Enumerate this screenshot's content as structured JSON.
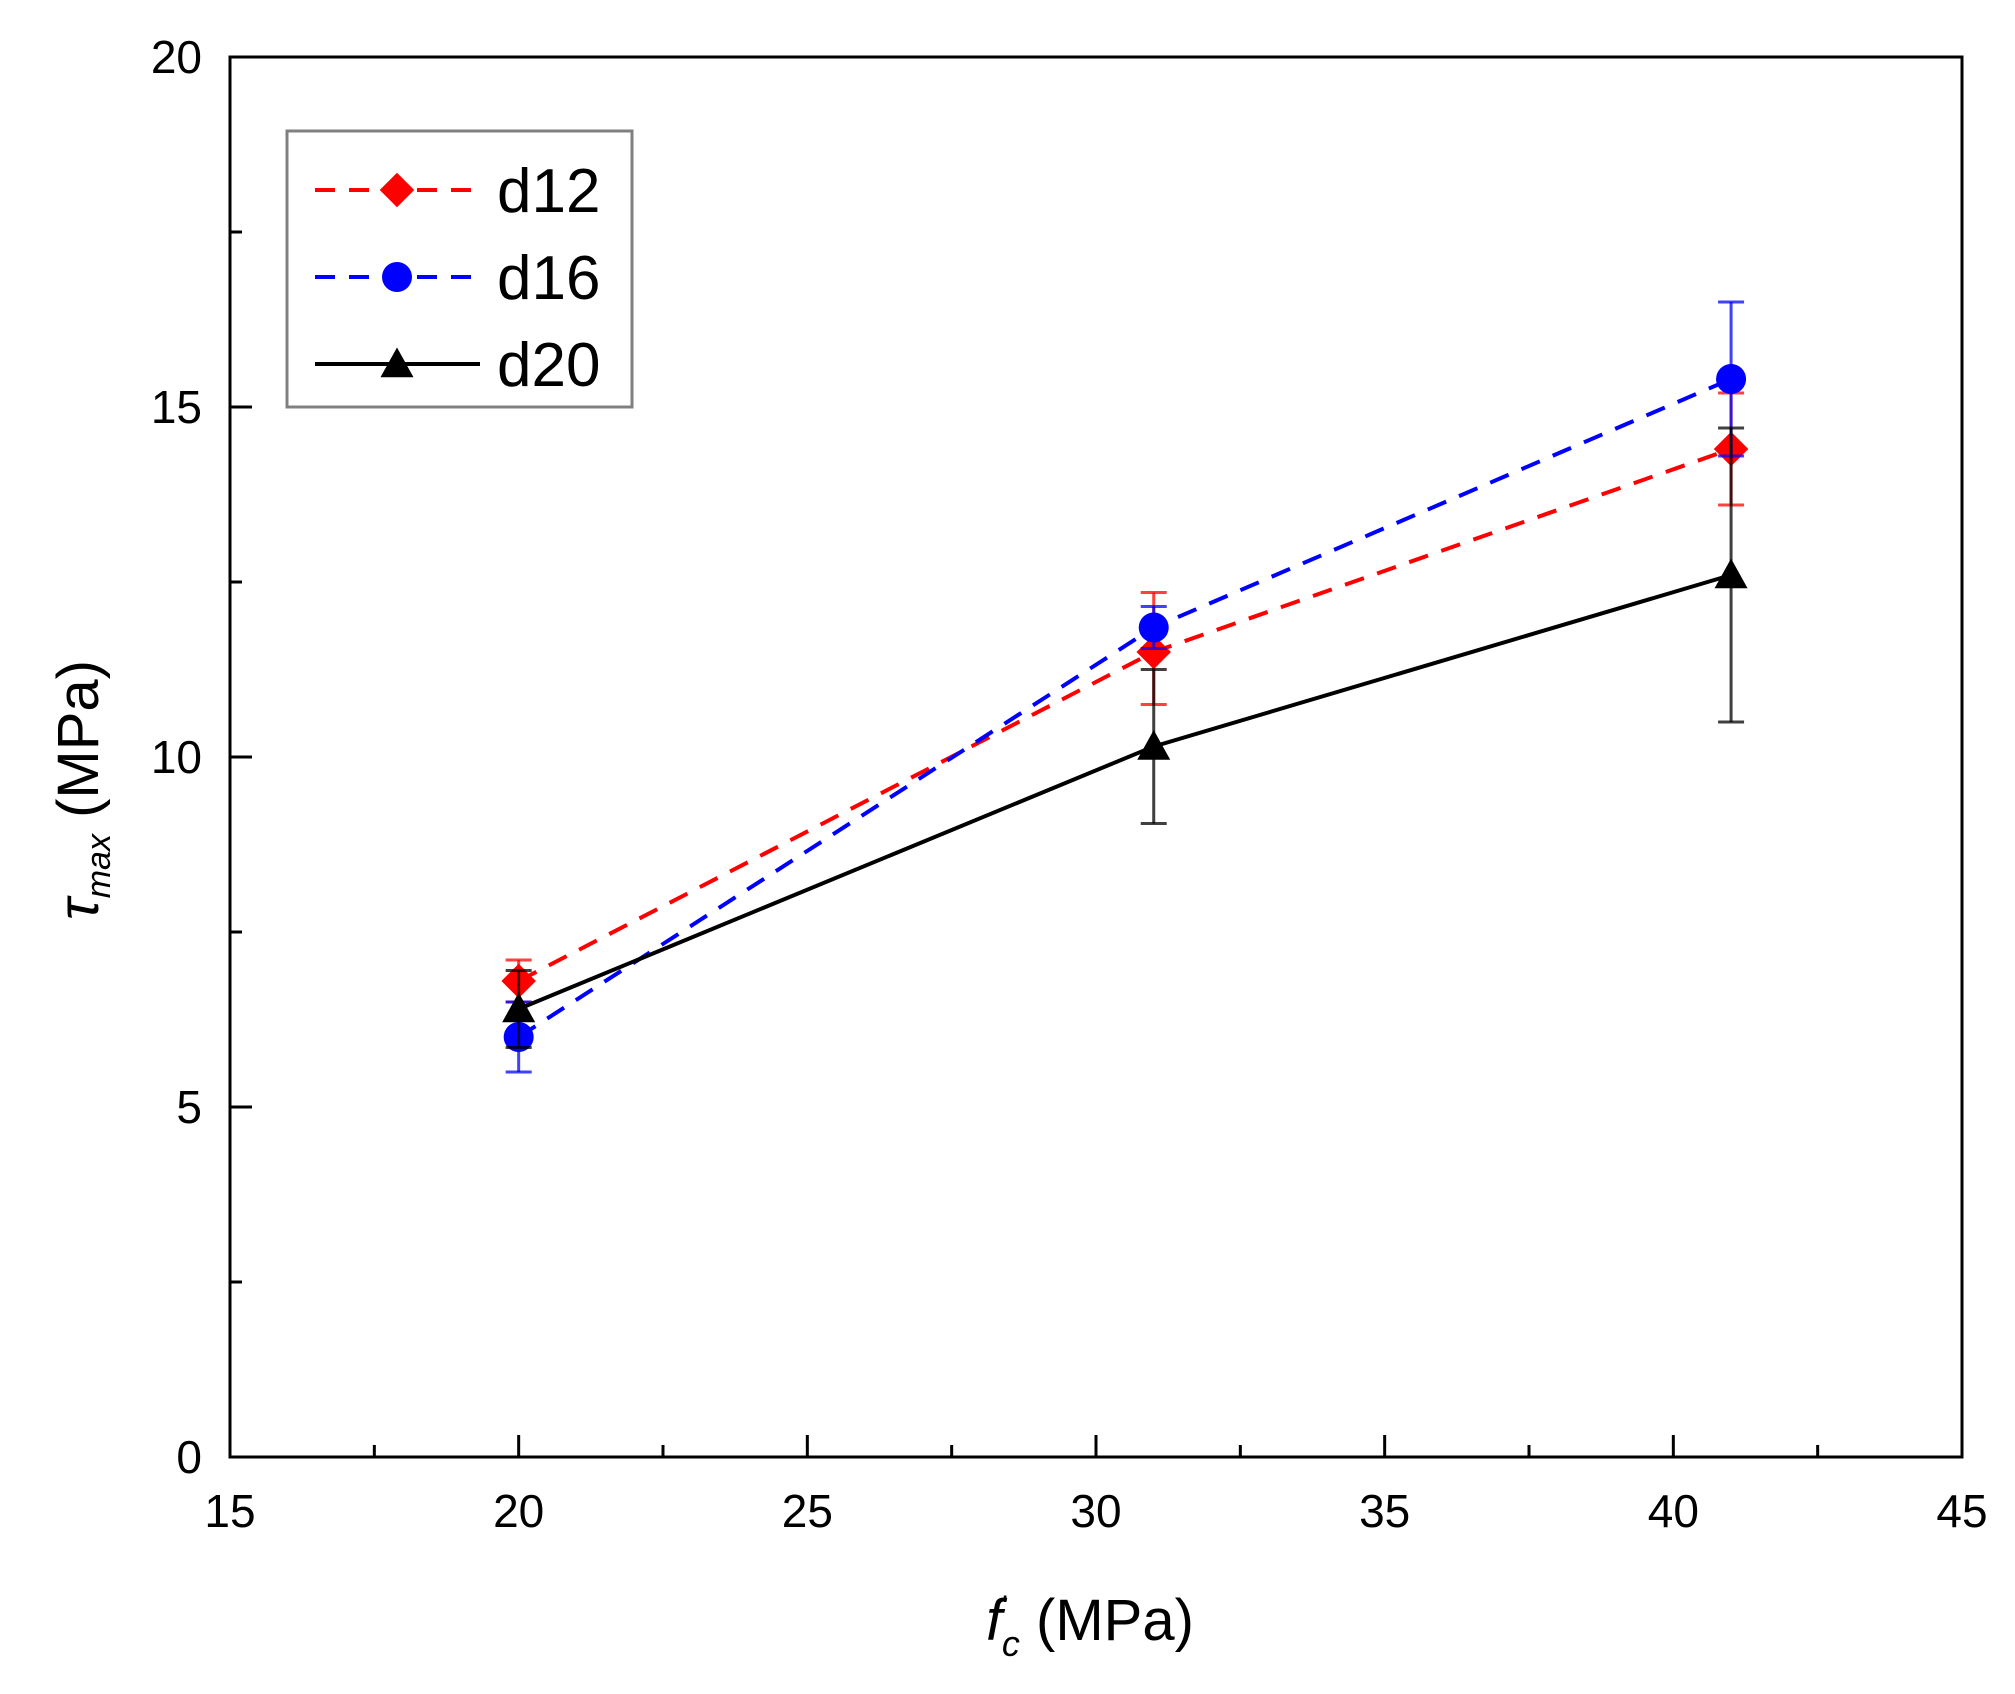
{
  "chart_data": {
    "type": "line",
    "title": "",
    "xlabel": {
      "main": "f",
      "sup": "'",
      "sub": "c",
      "unit": " (MPa)"
    },
    "ylabel": {
      "main": "τ",
      "sub": "max",
      "unit": " (MPa)"
    },
    "xlim": [
      15,
      45
    ],
    "ylim": [
      0,
      20
    ],
    "xticks": [
      15,
      20,
      25,
      30,
      35,
      40,
      45
    ],
    "yticks": [
      0,
      5,
      10,
      15,
      20
    ],
    "x_minor_step": 2.5,
    "y_minor_step": 2.5,
    "grid": false,
    "legend_position": "top-left",
    "series": [
      {
        "name": "d12",
        "color": "#ff0000",
        "line_style": "dashed",
        "marker": "diamond",
        "points": [
          {
            "x": 20,
            "y": 6.8,
            "err_low": 6.5,
            "err_high": 7.1
          },
          {
            "x": 31,
            "y": 11.5,
            "err_low": 10.75,
            "err_high": 12.35
          },
          {
            "x": 41,
            "y": 14.4,
            "err_low": 13.6,
            "err_high": 15.2
          }
        ]
      },
      {
        "name": "d16",
        "color": "#0000ff",
        "line_style": "dashed",
        "marker": "circle",
        "points": [
          {
            "x": 20,
            "y": 6.0,
            "err_low": 5.5,
            "err_high": 6.5
          },
          {
            "x": 31,
            "y": 11.85,
            "err_low": 11.55,
            "err_high": 12.15
          },
          {
            "x": 41,
            "y": 15.4,
            "err_low": 14.3,
            "err_high": 16.5
          }
        ]
      },
      {
        "name": "d20",
        "color": "#000000",
        "line_style": "solid",
        "marker": "triangle",
        "points": [
          {
            "x": 20,
            "y": 6.4,
            "err_low": 5.85,
            "err_high": 6.95
          },
          {
            "x": 31,
            "y": 10.15,
            "err_low": 9.05,
            "err_high": 11.25
          },
          {
            "x": 41,
            "y": 12.6,
            "err_low": 10.5,
            "err_high": 14.7
          }
        ]
      }
    ]
  }
}
